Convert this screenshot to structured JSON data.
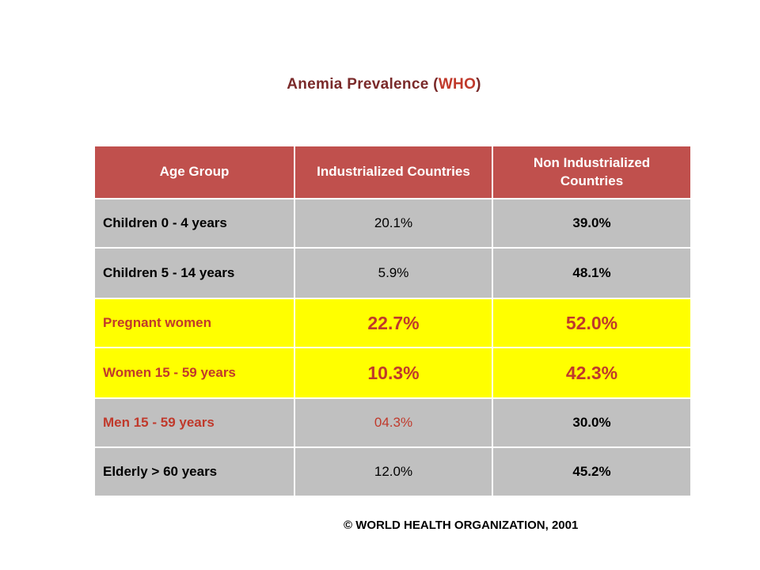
{
  "title": {
    "main": "Anemia Prevalence",
    "open_paren": "(",
    "org": "WHO",
    "close_paren": ")"
  },
  "table": {
    "headers": {
      "age": "Age Group",
      "industrialized": "Industrialized Countries",
      "non_industrialized": "Non Industrialized Countries"
    },
    "rows": [
      {
        "age": "Children 0 - 4 years",
        "industrialized": "20.1%",
        "non_industrialized": "39.0%"
      },
      {
        "age": "Children 5 - 14 years",
        "industrialized": "5.9%",
        "non_industrialized": "48.1%"
      },
      {
        "age": "Pregnant women",
        "industrialized": "22.7%",
        "non_industrialized": "52.0%"
      },
      {
        "age": "Women 15 - 59 years",
        "industrialized": "10.3%",
        "non_industrialized": "42.3%"
      },
      {
        "age": "Men 15 - 59 years",
        "industrialized": "04.3%",
        "non_industrialized": "30.0%"
      },
      {
        "age": "Elderly > 60 years",
        "industrialized": "12.0%",
        "non_industrialized": "45.2%"
      }
    ]
  },
  "colors": {
    "header_bg": "#c0504d",
    "row_grey": "#c0c0c0",
    "row_highlight": "#ffff00",
    "accent_red": "#c0392b",
    "title_color": "#7a2a2a"
  },
  "footer": "© WORLD HEALTH ORGANIZATION, 2001"
}
